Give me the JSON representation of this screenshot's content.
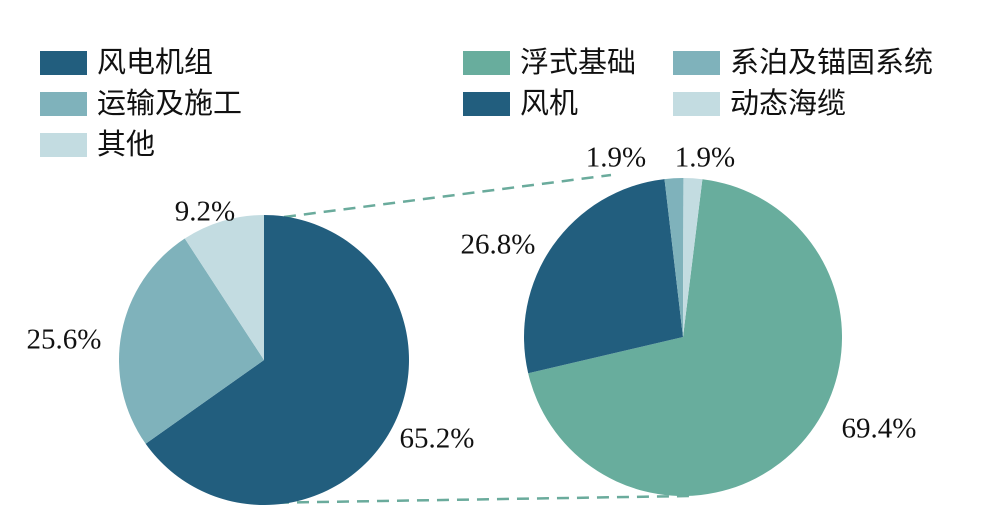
{
  "legend": {
    "left": [
      {
        "label": "风电机组",
        "color": "#225e7e"
      },
      {
        "label": "运输及施工",
        "color": "#7fb2bb"
      },
      {
        "label": "其他",
        "color": "#c3dce1"
      }
    ],
    "right": [
      {
        "label": "浮式基础",
        "color": "#68ad9d"
      },
      {
        "label": "系泊及锚固系统",
        "color": "#7fb2bb"
      },
      {
        "label": "风机",
        "color": "#225e7e"
      },
      {
        "label": "动态海缆",
        "color": "#c3dce1"
      }
    ]
  },
  "connectors": {
    "style": "dashed",
    "color": "#6aab9c"
  },
  "chart_data": [
    {
      "type": "pie",
      "name": "total-cost-breakdown",
      "labels": [
        "风电机组",
        "运输及施工",
        "其他"
      ],
      "values": [
        65.2,
        25.6,
        9.2
      ],
      "value_labels": [
        "65.2%",
        "25.6%",
        "9.2%"
      ],
      "colors": [
        "#225e7e",
        "#7fb2bb",
        "#c3dce1"
      ],
      "start_angle_deg": 0,
      "direction": "clockwise",
      "legend_position": "top-left"
    },
    {
      "type": "pie",
      "name": "turbine-unit-breakdown",
      "labels": [
        "浮式基础",
        "风机",
        "系泊及锚固系统",
        "动态海缆"
      ],
      "values": [
        69.4,
        26.8,
        1.9,
        1.9
      ],
      "value_labels": [
        "69.4%",
        "26.8%",
        "1.9%",
        "1.9%"
      ],
      "colors": [
        "#68ad9d",
        "#225e7e",
        "#7fb2bb",
        "#c3dce1"
      ],
      "start_angle_deg": 7,
      "direction": "clockwise",
      "legend_position": "top-right"
    }
  ]
}
